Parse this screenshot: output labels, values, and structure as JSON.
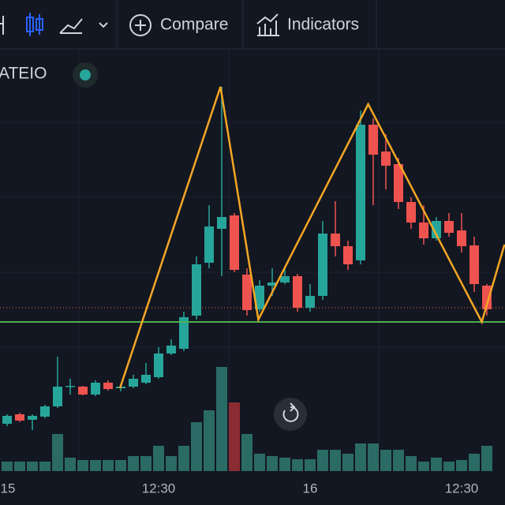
{
  "toolbar": {
    "compare": "Compare",
    "indicators": "Indicators"
  },
  "chart_data": {
    "type": "candlestick",
    "title": "ATEIO",
    "categories": [
      "15",
      null,
      null,
      null,
      null,
      null,
      null,
      null,
      null,
      null,
      null,
      null,
      "12:30",
      null,
      null,
      null,
      null,
      null,
      null,
      null,
      null,
      null,
      null,
      null,
      "16",
      null,
      null,
      null,
      null,
      null,
      null,
      null,
      null,
      null,
      null,
      null,
      "12:30",
      null,
      null
    ],
    "open": [
      6.3,
      7.5,
      6.8,
      7.2,
      8.5,
      11.0,
      11.0,
      10.0,
      11.5,
      10.8,
      11.0,
      11.5,
      12.2,
      15.2,
      15.8,
      20.0,
      26.7,
      31.0,
      32.7,
      25.2,
      20.8,
      23.8,
      24.2,
      25.0,
      21.0,
      22.5,
      30.4,
      28.8,
      27.0,
      44.2,
      40.8,
      39.2,
      34.4,
      31.8,
      29.8,
      32.0,
      30.8,
      28.9,
      23.8
    ],
    "high": [
      7.5,
      7.7,
      7.5,
      8.7,
      14.8,
      12.0,
      11.1,
      11.8,
      11.8,
      11.3,
      12.5,
      14.0,
      16.0,
      17.0,
      20.5,
      27.5,
      34.0,
      49.0,
      33.0,
      26.0,
      24.5,
      26.0,
      26.0,
      25.3,
      24.0,
      32.0,
      34.5,
      29.5,
      46.0,
      45.0,
      43.0,
      40.0,
      35.0,
      34.0,
      32.5,
      33.0,
      33.0,
      30.0,
      24.0
    ],
    "low": [
      6.0,
      6.5,
      5.5,
      7.0,
      8.3,
      10.0,
      9.9,
      9.8,
      10.5,
      10.4,
      10.8,
      11.3,
      12.0,
      15.0,
      15.5,
      19.5,
      26.0,
      25.0,
      25.5,
      20.0,
      20.5,
      22.5,
      24.0,
      20.5,
      20.5,
      22.0,
      27.5,
      25.8,
      26.5,
      34.0,
      36.0,
      33.5,
      31.0,
      29.0,
      29.5,
      30.0,
      28.0,
      23.0,
      20.0
    ],
    "close": [
      7.3,
      6.7,
      7.3,
      8.5,
      11.0,
      11.1,
      10.0,
      11.5,
      10.7,
      11.0,
      12.0,
      12.5,
      15.2,
      16.2,
      19.8,
      26.5,
      31.3,
      32.5,
      25.8,
      20.7,
      23.8,
      24.2,
      25.0,
      21.0,
      22.5,
      30.4,
      28.8,
      26.5,
      44.2,
      40.4,
      39.0,
      34.4,
      31.8,
      29.8,
      32.0,
      30.5,
      28.8,
      24.0,
      20.8
    ],
    "up_color": "#26a69a",
    "down_color": "#ef5350",
    "ylim": [
      0,
      56
    ],
    "volume": {
      "values": [
        12,
        12,
        12,
        12,
        47,
        17,
        14,
        14,
        14,
        14,
        19,
        19,
        32,
        19,
        32,
        62,
        77,
        132,
        87,
        47,
        22,
        19,
        17,
        15,
        15,
        27,
        27,
        22,
        35,
        35,
        27,
        27,
        19,
        12,
        17,
        12,
        14,
        22,
        32
      ],
      "colors": [
        "#2b6b65",
        "#2b6b65",
        "#2b6b65",
        "#2b6b65",
        "#2b6b65",
        "#2b6b65",
        "#2b6b65",
        "#2b6b65",
        "#2b6b65",
        "#2b6b65",
        "#2b6b65",
        "#2b6b65",
        "#2b6b65",
        "#2b6b65",
        "#2b6b65",
        "#2b6b65",
        "#2b6b65",
        "#2b6b65",
        "#8a2c32",
        "#2b6b65",
        "#2b6b65",
        "#2b6b65",
        "#2b6b65",
        "#2b6b65",
        "#2b6b65",
        "#2b6b65",
        "#2b6b65",
        "#2b6b65",
        "#2b6b65",
        "#2b6b65",
        "#2b6b65",
        "#2b6b65",
        "#2b6b65",
        "#2b6b65",
        "#2b6b65",
        "#2b6b65",
        "#2b6b65",
        "#2b6b65",
        "#2b6b65"
      ],
      "vlim": [
        0,
        140
      ]
    },
    "pattern": {
      "x": [
        8.94,
        16.9,
        19.9,
        28.6,
        37.6,
        39.4
      ],
      "values": [
        10.8,
        49.0,
        19.5,
        46.8,
        19.2,
        29.0
      ],
      "color": "#f5a623"
    },
    "support": {
      "value": 19.2,
      "color": "#4caf50"
    },
    "price_line": {
      "value": 21.0,
      "color": "#ef6c3a"
    }
  }
}
